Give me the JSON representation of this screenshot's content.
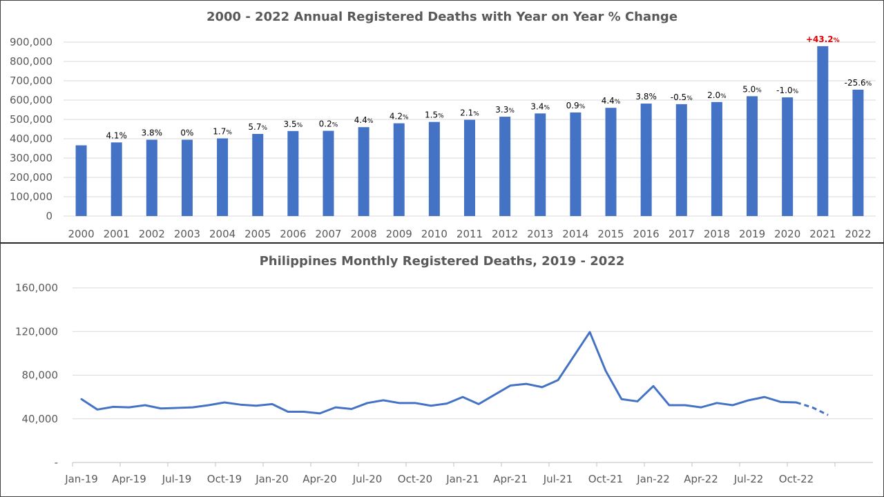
{
  "chart_data": [
    {
      "type": "bar",
      "title": "2000 - 2022 Annual Registered Deaths with Year on Year % Change",
      "categories": [
        "2000",
        "2001",
        "2002",
        "2003",
        "2004",
        "2005",
        "2006",
        "2007",
        "2008",
        "2009",
        "2010",
        "2011",
        "2012",
        "2013",
        "2014",
        "2015",
        "2016",
        "2017",
        "2018",
        "2019",
        "2020",
        "2021",
        "2022"
      ],
      "values": [
        366000,
        381000,
        395000,
        395000,
        402000,
        425000,
        440000,
        441000,
        460000,
        480000,
        487000,
        498000,
        514000,
        531000,
        536000,
        560000,
        582000,
        579000,
        590000,
        620000,
        614000,
        879000,
        654000
      ],
      "data_labels": [
        {
          "value": "",
          "unit": ""
        },
        {
          "value": "4.1%",
          "unit": ""
        },
        {
          "value": "3.8%",
          "unit": ""
        },
        {
          "value": "0%",
          "unit": ""
        },
        {
          "value": "1.7",
          "unit": "%"
        },
        {
          "value": "5.7",
          "unit": "%"
        },
        {
          "value": "3.5",
          "unit": "%"
        },
        {
          "value": "0.2",
          "unit": "%"
        },
        {
          "value": "4.4",
          "unit": "%"
        },
        {
          "value": "4.2",
          "unit": "%"
        },
        {
          "value": "1.5",
          "unit": "%"
        },
        {
          "value": "2.1",
          "unit": "%"
        },
        {
          "value": "3.3",
          "unit": "%"
        },
        {
          "value": "3.4",
          "unit": "%"
        },
        {
          "value": "0.9",
          "unit": "%"
        },
        {
          "value": "4.4",
          "unit": "%"
        },
        {
          "value": "3.8%",
          "unit": ""
        },
        {
          "value": "-0.5",
          "unit": "%"
        },
        {
          "value": "2.0",
          "unit": "%"
        },
        {
          "value": "5.0",
          "unit": "%"
        },
        {
          "value": "-1.0",
          "unit": "%"
        },
        {
          "value": "+43.2",
          "unit": "%"
        },
        {
          "value": "-25.6",
          "unit": "%"
        }
      ],
      "highlight_index": 21,
      "highlight_color": "#e00000",
      "bar_color": "#4472c4",
      "ylim": [
        0,
        900000
      ],
      "yticks": [
        0,
        100000,
        200000,
        300000,
        400000,
        500000,
        600000,
        700000,
        800000,
        900000
      ],
      "ytick_labels": [
        "0",
        "100,000",
        "200,000",
        "300,000",
        "400,000",
        "500,000",
        "600,000",
        "700,000",
        "800,000",
        "900,000"
      ],
      "grid": true
    },
    {
      "type": "line",
      "title": "Philippines Monthly Registered Deaths, 2019 - 2022",
      "line_color": "#4472c4",
      "values": [
        58000,
        48500,
        51000,
        50500,
        52500,
        49500,
        50000,
        50500,
        52500,
        55000,
        53000,
        52000,
        53500,
        46500,
        46500,
        45000,
        50500,
        49000,
        54500,
        57000,
        54500,
        54500,
        52000,
        54000,
        60000,
        53500,
        62000,
        70500,
        72000,
        69000,
        75500,
        97500,
        119500,
        84000,
        58000,
        56000,
        70000,
        52500,
        52500,
        50500,
        54500,
        52500,
        57000,
        60000,
        55500,
        55000,
        50500,
        43500
      ],
      "dashed_from_index": 45,
      "x_tick_labels": [
        "Jan-19",
        "Apr-19",
        "Jul-19",
        "Oct-19",
        "Jan-20",
        "Apr-20",
        "Jul-20",
        "Oct-20",
        "Jan-21",
        "Apr-21",
        "Jul-21",
        "Oct-21",
        "Jan-22",
        "Apr-22",
        "Jul-22",
        "Oct-22"
      ],
      "x_tick_step_months": 3,
      "ylim": [
        0,
        160000
      ],
      "yticks": [
        0,
        40000,
        80000,
        120000,
        160000
      ],
      "ytick_labels": [
        "-",
        "40,000",
        "80,000",
        "120,000",
        "160,000"
      ],
      "grid": true
    }
  ]
}
